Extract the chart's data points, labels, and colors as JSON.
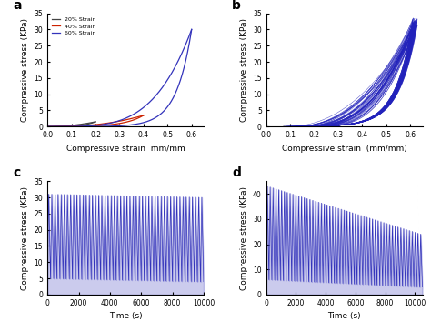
{
  "panel_labels": [
    "a",
    "b",
    "c",
    "d"
  ],
  "panel_label_fontsize": 10,
  "panel_label_weight": "bold",
  "panel_a": {
    "xlabel": "Compressive strain  mm/mm",
    "ylabel": "Compressive stress (KPa)",
    "xlim": [
      0.0,
      0.65
    ],
    "ylim": [
      0,
      35
    ],
    "xticks": [
      0.0,
      0.1,
      0.2,
      0.3,
      0.4,
      0.5,
      0.6
    ],
    "yticks": [
      0,
      5,
      10,
      15,
      20,
      25,
      30,
      35
    ],
    "legend_labels": [
      "20% Strain",
      "40% Strain",
      "60% Strain"
    ],
    "legend_colors": [
      "#444444",
      "#cc2200",
      "#3333bb"
    ],
    "curve_colors": [
      "#444444",
      "#cc2200",
      "#3333bb"
    ],
    "max_strains": [
      0.2,
      0.4,
      0.6
    ],
    "peak_stresses": [
      1.5,
      3.5,
      30.0
    ]
  },
  "panel_b": {
    "xlabel": "Compressive strain  (mm/mm)",
    "ylabel": "Compressive stress (KPa)",
    "xlim": [
      0.0,
      0.65
    ],
    "ylim": [
      0,
      35
    ],
    "xticks": [
      0.0,
      0.1,
      0.2,
      0.3,
      0.4,
      0.5,
      0.6
    ],
    "yticks": [
      0,
      5,
      10,
      15,
      20,
      25,
      30,
      35
    ],
    "num_cycles": 50,
    "color": "#2222bb",
    "max_strain": 0.62,
    "peak_stress_mean": 32.0,
    "peak_stress_spread": 1.5
  },
  "panel_c": {
    "xlabel": "Time (s)",
    "ylabel": "Compressive stress (KPa)",
    "xlim": [
      0,
      10000
    ],
    "ylim": [
      0,
      35
    ],
    "xticks": [
      0,
      2000,
      4000,
      6000,
      8000,
      10000
    ],
    "yticks": [
      0,
      5,
      10,
      15,
      20,
      25,
      30,
      35
    ],
    "color": "#3333bb",
    "peak_start": 31,
    "peak_end": 30,
    "valley_start": 5,
    "valley_end": 4,
    "num_cycles": 50
  },
  "panel_d": {
    "xlabel": "Time (s)",
    "ylabel": "Compressive stress (KPa)",
    "xlim": [
      0,
      10500
    ],
    "ylim": [
      0,
      45
    ],
    "xticks": [
      0,
      2000,
      4000,
      6000,
      8000,
      10000
    ],
    "yticks": [
      0,
      10,
      20,
      30,
      40
    ],
    "color": "#3333bb",
    "peak_start": 43,
    "peak_end": 24,
    "valley_start": 6,
    "valley_end": 3,
    "num_cycles": 55
  },
  "fig_bg": "#ffffff",
  "axes_bg": "#ffffff",
  "tick_fontsize": 5.5,
  "label_fontsize": 6.5
}
